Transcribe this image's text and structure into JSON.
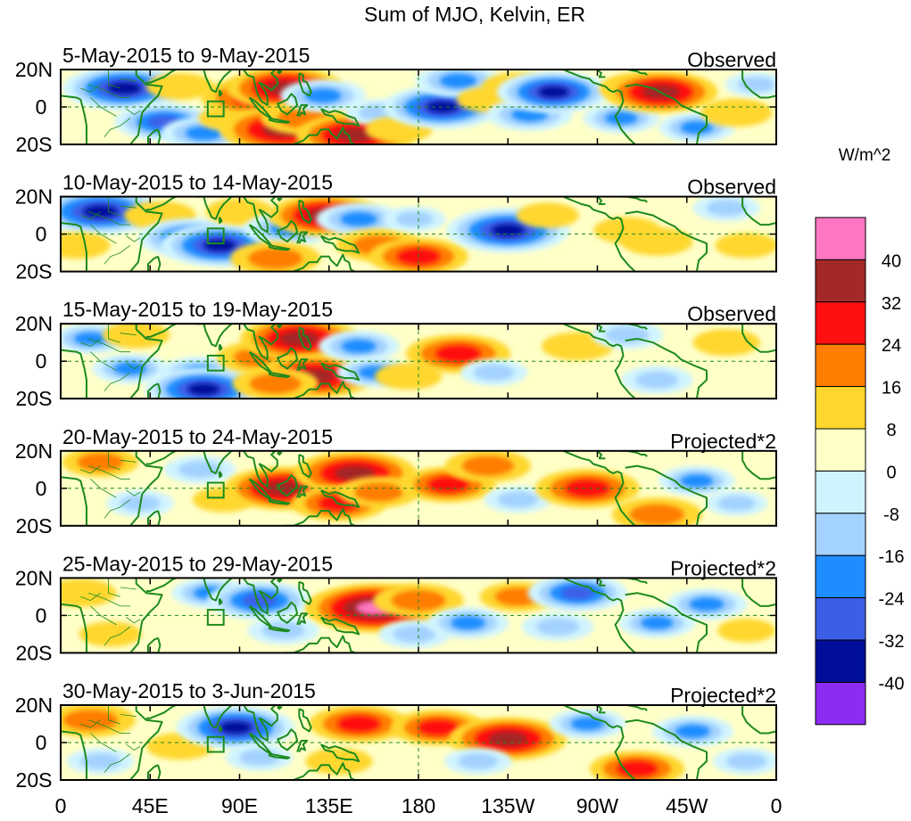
{
  "chart_data": {
    "type": "heatmap",
    "title": "Sum of MJO, Kelvin, ER",
    "colorbar": {
      "unit_label": "W/m^2",
      "levels": [
        40,
        32,
        24,
        16,
        8,
        0,
        -8,
        -16,
        -24,
        -32,
        -40
      ],
      "colors": [
        "#ff77c3",
        "#a32828",
        "#ff1010",
        "#ff7d00",
        "#ffd72e",
        "#ffffc8",
        "#d0f4ff",
        "#a4d2ff",
        "#1f8cff",
        "#3c5ee6",
        "#000e9a",
        "#8c2cf2"
      ]
    },
    "x_axis": {
      "range_deg": [
        0,
        360
      ],
      "ticks": [
        {
          "lon": 0,
          "label": "0"
        },
        {
          "lon": 45,
          "label": "45E"
        },
        {
          "lon": 90,
          "label": "90E"
        },
        {
          "lon": 135,
          "label": "135E"
        },
        {
          "lon": 180,
          "label": "180"
        },
        {
          "lon": 225,
          "label": "135W"
        },
        {
          "lon": 270,
          "label": "90W"
        },
        {
          "lon": 315,
          "label": "45W"
        },
        {
          "lon": 360,
          "label": "0"
        }
      ]
    },
    "y_axis": {
      "range_deg": [
        -20,
        20
      ],
      "ticks": [
        {
          "lat": 20,
          "label": "20N"
        },
        {
          "lat": 0,
          "label": "0"
        },
        {
          "lat": -20,
          "label": "20S"
        }
      ]
    },
    "panels": [
      {
        "date_range": "5-May-2015 to 9-May-2015",
        "status": "Observed",
        "anomalies": [
          {
            "lon": 32,
            "lat": 10,
            "val": -36
          },
          {
            "lon": 52,
            "lat": -8,
            "val": -26
          },
          {
            "lon": 72,
            "lat": -14,
            "val": -20
          },
          {
            "lon": 60,
            "lat": 11,
            "val": 12
          },
          {
            "lon": 85,
            "lat": -6,
            "val": 10
          },
          {
            "lon": 98,
            "lat": 5,
            "val": 30
          },
          {
            "lon": 113,
            "lat": 10,
            "val": 34
          },
          {
            "lon": 112,
            "lat": -12,
            "val": 38
          },
          {
            "lon": 122,
            "lat": -6,
            "val": 20
          },
          {
            "lon": 132,
            "lat": 6,
            "val": -20
          },
          {
            "lon": 148,
            "lat": -15,
            "val": 34
          },
          {
            "lon": 160,
            "lat": -3,
            "val": -12
          },
          {
            "lon": 170,
            "lat": -12,
            "val": 12
          },
          {
            "lon": 192,
            "lat": 0,
            "val": -34
          },
          {
            "lon": 200,
            "lat": 14,
            "val": -20
          },
          {
            "lon": 215,
            "lat": 4,
            "val": 10
          },
          {
            "lon": 236,
            "lat": -4,
            "val": -20
          },
          {
            "lon": 230,
            "lat": 11,
            "val": 14
          },
          {
            "lon": 248,
            "lat": 8,
            "val": -32
          },
          {
            "lon": 282,
            "lat": -6,
            "val": -16
          },
          {
            "lon": 290,
            "lat": 10,
            "val": 16
          },
          {
            "lon": 302,
            "lat": 8,
            "val": 32
          },
          {
            "lon": 320,
            "lat": -11,
            "val": -16
          },
          {
            "lon": 340,
            "lat": -3,
            "val": 14
          },
          {
            "lon": 350,
            "lat": 12,
            "val": -10
          }
        ]
      },
      {
        "date_range": "10-May-2015 to 14-May-2015",
        "status": "Observed",
        "anomalies": [
          {
            "lon": 20,
            "lat": 12,
            "val": -38
          },
          {
            "lon": 8,
            "lat": -6,
            "val": 12
          },
          {
            "lon": 50,
            "lat": 10,
            "val": 14
          },
          {
            "lon": 65,
            "lat": -2,
            "val": -28
          },
          {
            "lon": 80,
            "lat": -6,
            "val": -34
          },
          {
            "lon": 90,
            "lat": 12,
            "val": 12
          },
          {
            "lon": 115,
            "lat": 3,
            "val": -22
          },
          {
            "lon": 108,
            "lat": -13,
            "val": 22
          },
          {
            "lon": 133,
            "lat": 10,
            "val": 32
          },
          {
            "lon": 150,
            "lat": 8,
            "val": -20
          },
          {
            "lon": 160,
            "lat": -6,
            "val": 20
          },
          {
            "lon": 180,
            "lat": -12,
            "val": 26
          },
          {
            "lon": 178,
            "lat": 8,
            "val": -10
          },
          {
            "lon": 225,
            "lat": 2,
            "val": -36
          },
          {
            "lon": 245,
            "lat": 10,
            "val": 10
          },
          {
            "lon": 285,
            "lat": 2,
            "val": 12
          },
          {
            "lon": 300,
            "lat": -4,
            "val": 14
          },
          {
            "lon": 335,
            "lat": 14,
            "val": -12
          },
          {
            "lon": 345,
            "lat": -6,
            "val": 10
          }
        ]
      },
      {
        "date_range": "15-May-2015 to 19-May-2015",
        "status": "Observed",
        "anomalies": [
          {
            "lon": 15,
            "lat": 12,
            "val": -16
          },
          {
            "lon": 35,
            "lat": -4,
            "val": -16
          },
          {
            "lon": 38,
            "lat": 14,
            "val": 12
          },
          {
            "lon": 70,
            "lat": -6,
            "val": -18
          },
          {
            "lon": 72,
            "lat": -15,
            "val": -34
          },
          {
            "lon": 100,
            "lat": 2,
            "val": 20
          },
          {
            "lon": 120,
            "lat": 12,
            "val": 34
          },
          {
            "lon": 128,
            "lat": -8,
            "val": 34
          },
          {
            "lon": 108,
            "lat": -12,
            "val": 20
          },
          {
            "lon": 150,
            "lat": 8,
            "val": -18
          },
          {
            "lon": 158,
            "lat": -6,
            "val": -16
          },
          {
            "lon": 175,
            "lat": -8,
            "val": 12
          },
          {
            "lon": 200,
            "lat": 4,
            "val": 28
          },
          {
            "lon": 218,
            "lat": -6,
            "val": -12
          },
          {
            "lon": 260,
            "lat": 8,
            "val": 14
          },
          {
            "lon": 285,
            "lat": 14,
            "val": -14
          },
          {
            "lon": 300,
            "lat": -10,
            "val": -14
          },
          {
            "lon": 335,
            "lat": 10,
            "val": 12
          }
        ]
      },
      {
        "date_range": "20-May-2015 to 24-May-2015",
        "status": "Projected*2",
        "anomalies": [
          {
            "lon": 20,
            "lat": 14,
            "val": 16
          },
          {
            "lon": 40,
            "lat": -8,
            "val": -12
          },
          {
            "lon": 70,
            "lat": 10,
            "val": -14
          },
          {
            "lon": 82,
            "lat": -6,
            "val": 10
          },
          {
            "lon": 112,
            "lat": 0,
            "val": 34
          },
          {
            "lon": 148,
            "lat": 8,
            "val": 36
          },
          {
            "lon": 140,
            "lat": -8,
            "val": 24
          },
          {
            "lon": 160,
            "lat": -2,
            "val": 18
          },
          {
            "lon": 195,
            "lat": 2,
            "val": 24
          },
          {
            "lon": 215,
            "lat": 12,
            "val": 20
          },
          {
            "lon": 230,
            "lat": -6,
            "val": -12
          },
          {
            "lon": 265,
            "lat": 0,
            "val": 28
          },
          {
            "lon": 300,
            "lat": -14,
            "val": 22
          },
          {
            "lon": 320,
            "lat": 4,
            "val": -16
          },
          {
            "lon": 340,
            "lat": -8,
            "val": -10
          }
        ]
      },
      {
        "date_range": "25-May-2015 to 29-May-2015",
        "status": "Projected*2",
        "anomalies": [
          {
            "lon": 10,
            "lat": 12,
            "val": 14
          },
          {
            "lon": 25,
            "lat": -10,
            "val": 10
          },
          {
            "lon": 75,
            "lat": 12,
            "val": -16
          },
          {
            "lon": 100,
            "lat": 8,
            "val": -28
          },
          {
            "lon": 112,
            "lat": -8,
            "val": -14
          },
          {
            "lon": 145,
            "lat": 4,
            "val": 20
          },
          {
            "lon": 158,
            "lat": 4,
            "val": 42
          },
          {
            "lon": 180,
            "lat": 8,
            "val": 22
          },
          {
            "lon": 178,
            "lat": -10,
            "val": -14
          },
          {
            "lon": 205,
            "lat": -4,
            "val": -18
          },
          {
            "lon": 230,
            "lat": 10,
            "val": 16
          },
          {
            "lon": 250,
            "lat": -6,
            "val": -14
          },
          {
            "lon": 260,
            "lat": 12,
            "val": -26
          },
          {
            "lon": 300,
            "lat": -4,
            "val": -16
          },
          {
            "lon": 325,
            "lat": 6,
            "val": -18
          },
          {
            "lon": 345,
            "lat": -8,
            "val": 8
          }
        ]
      },
      {
        "date_range": "30-May-2015 to 3-Jun-2015",
        "status": "Projected*2",
        "anomalies": [
          {
            "lon": 15,
            "lat": 12,
            "val": 22
          },
          {
            "lon": 20,
            "lat": -10,
            "val": -12
          },
          {
            "lon": 60,
            "lat": -2,
            "val": 12
          },
          {
            "lon": 88,
            "lat": 8,
            "val": -34
          },
          {
            "lon": 100,
            "lat": -8,
            "val": -12
          },
          {
            "lon": 150,
            "lat": 10,
            "val": 26
          },
          {
            "lon": 140,
            "lat": -10,
            "val": 12
          },
          {
            "lon": 190,
            "lat": 8,
            "val": 24
          },
          {
            "lon": 225,
            "lat": 2,
            "val": 34
          },
          {
            "lon": 210,
            "lat": -10,
            "val": -12
          },
          {
            "lon": 265,
            "lat": 10,
            "val": -16
          },
          {
            "lon": 290,
            "lat": -14,
            "val": 24
          },
          {
            "lon": 318,
            "lat": 6,
            "val": -18
          },
          {
            "lon": 345,
            "lat": -10,
            "val": -12
          }
        ]
      }
    ]
  }
}
